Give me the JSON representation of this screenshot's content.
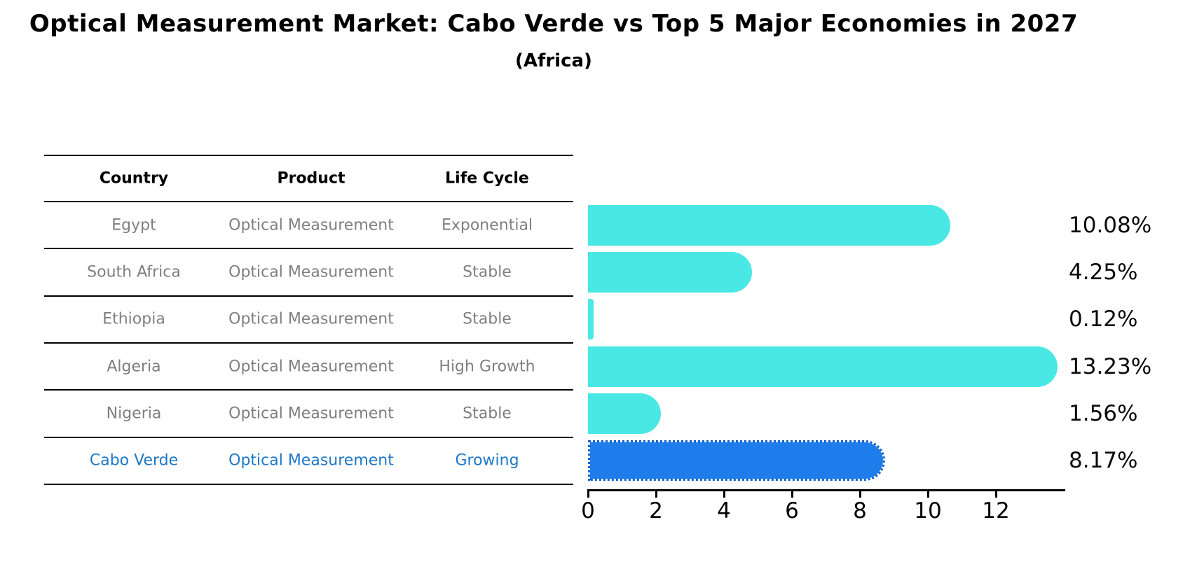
{
  "page": {
    "title": "Optical Measurement Market: Cabo Verde vs Top 5 Major Economies in 2027",
    "subtitle": "(Africa)"
  },
  "table": {
    "headers": [
      "Country",
      "Product",
      "Life Cycle"
    ]
  },
  "chart_data": {
    "type": "bar",
    "orientation": "horizontal",
    "unit": "%",
    "title": "Optical Measurement Market: Cabo Verde vs Top 5 Major Economies in 2027",
    "subtitle": "(Africa)",
    "categories": [
      "Egypt",
      "South Africa",
      "Ethiopia",
      "Algeria",
      "Nigeria",
      "Cabo Verde"
    ],
    "values": [
      10.08,
      4.25,
      0.12,
      13.23,
      1.56,
      8.17
    ],
    "value_labels": [
      "10.08%",
      "4.25%",
      "0.12%",
      "13.23%",
      "1.56%",
      "8.17%"
    ],
    "rows": [
      {
        "country": "Egypt",
        "product": "Optical Measurement",
        "life_cycle": "Exponential",
        "value": 10.08,
        "value_label": "10.08%",
        "highlight": false
      },
      {
        "country": "South Africa",
        "product": "Optical Measurement",
        "life_cycle": "Stable",
        "value": 4.25,
        "value_label": "4.25%",
        "highlight": false
      },
      {
        "country": "Ethiopia",
        "product": "Optical Measurement",
        "life_cycle": "Stable",
        "value": 0.12,
        "value_label": "0.12%",
        "highlight": false
      },
      {
        "country": "Algeria",
        "product": "Optical Measurement",
        "life_cycle": "High Growth",
        "value": 13.23,
        "value_label": "13.23%",
        "highlight": false
      },
      {
        "country": "Nigeria",
        "product": "Optical Measurement",
        "life_cycle": "Stable",
        "value": 1.56,
        "value_label": "1.56%",
        "highlight": false
      },
      {
        "country": "Cabo Verde",
        "product": "Optical Measurement",
        "life_cycle": "Growing",
        "value": 8.17,
        "value_label": "8.17%",
        "highlight": true
      }
    ],
    "xticks": [
      0,
      2,
      4,
      6,
      8,
      10,
      12
    ],
    "xlim": [
      0,
      13.9
    ],
    "grid": false,
    "legend": null,
    "colors": {
      "bar": "#4ae8e4",
      "bar_highlight": "#1e7deb",
      "highlight_text": "#1f78c8",
      "cell_text": "#7f7f7f",
      "header_text": "#000000"
    }
  }
}
